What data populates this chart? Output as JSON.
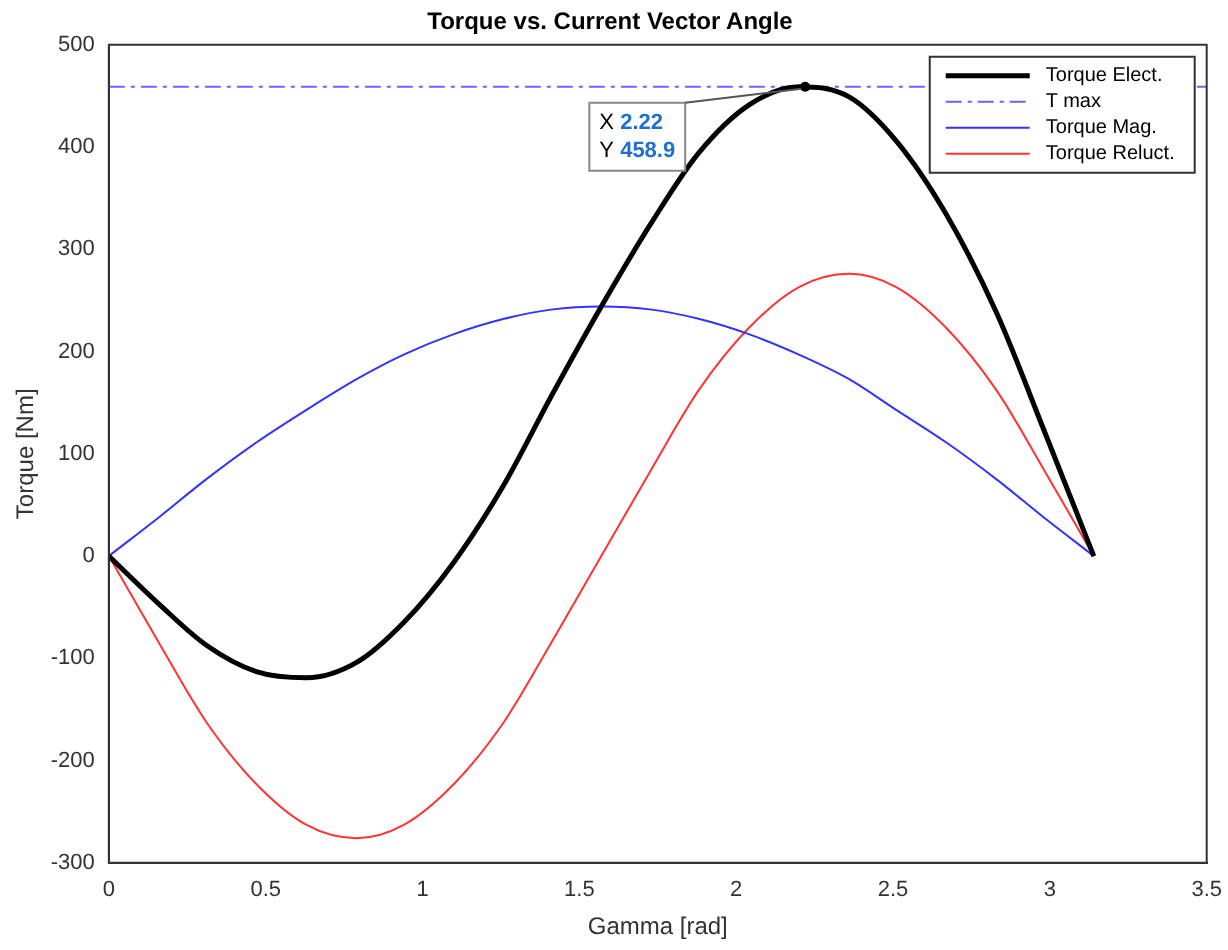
{
  "chart_data": {
    "type": "line",
    "title": "Torque vs. Current Vector Angle",
    "xlabel": "Gamma [rad]",
    "ylabel": "Torque [Nm]",
    "x": [
      0,
      0.16,
      0.31,
      0.47,
      0.63,
      0.79,
      0.94,
      1.1,
      1.26,
      1.41,
      1.57,
      1.73,
      1.88,
      2.04,
      2.2,
      2.36,
      2.51,
      2.67,
      2.83,
      2.98,
      3.14
    ],
    "series": [
      {
        "name": "Torque Elect.",
        "color": "#000000",
        "values": [
          0,
          -47,
          -87,
          -113,
          -119,
          -104,
          -65,
          -6,
          70,
          156,
          244,
          326,
          394,
          441,
          459,
          449,
          406,
          334,
          238,
          124,
          0
        ]
      },
      {
        "name": "T max",
        "color": "#6666ff",
        "line_style": "dashed",
        "x": [
          0,
          3.5
        ],
        "values": [
          459,
          459
        ]
      },
      {
        "name": "Torque Mag.",
        "color": "#3333ff",
        "values": [
          0,
          38,
          75,
          111,
          143,
          173,
          197,
          217,
          232,
          241,
          244,
          241,
          232,
          217,
          197,
          173,
          143,
          111,
          75,
          38,
          0
        ]
      },
      {
        "name": "Torque Reluct.",
        "color": "#ff3333",
        "values": [
          0,
          -85,
          -162,
          -223,
          -263,
          -276,
          -263,
          -223,
          -162,
          -85,
          0,
          85,
          162,
          223,
          263,
          276,
          263,
          223,
          162,
          85,
          0
        ]
      }
    ],
    "annotations": [
      {
        "text": "X 2.22\nY 458.9",
        "x": 2.22,
        "y": 458.9
      }
    ],
    "xlim": [
      0,
      3.5
    ],
    "xticks": [
      0,
      0.5,
      1,
      1.5,
      2,
      2.5,
      3,
      3.5
    ],
    "ylim": [
      -300,
      500
    ],
    "yticks": [
      -300,
      -200,
      -100,
      0,
      100,
      200,
      300,
      400,
      500
    ],
    "grid": false,
    "legend": "top right",
    "marker": "none",
    "line_style": "solid"
  }
}
